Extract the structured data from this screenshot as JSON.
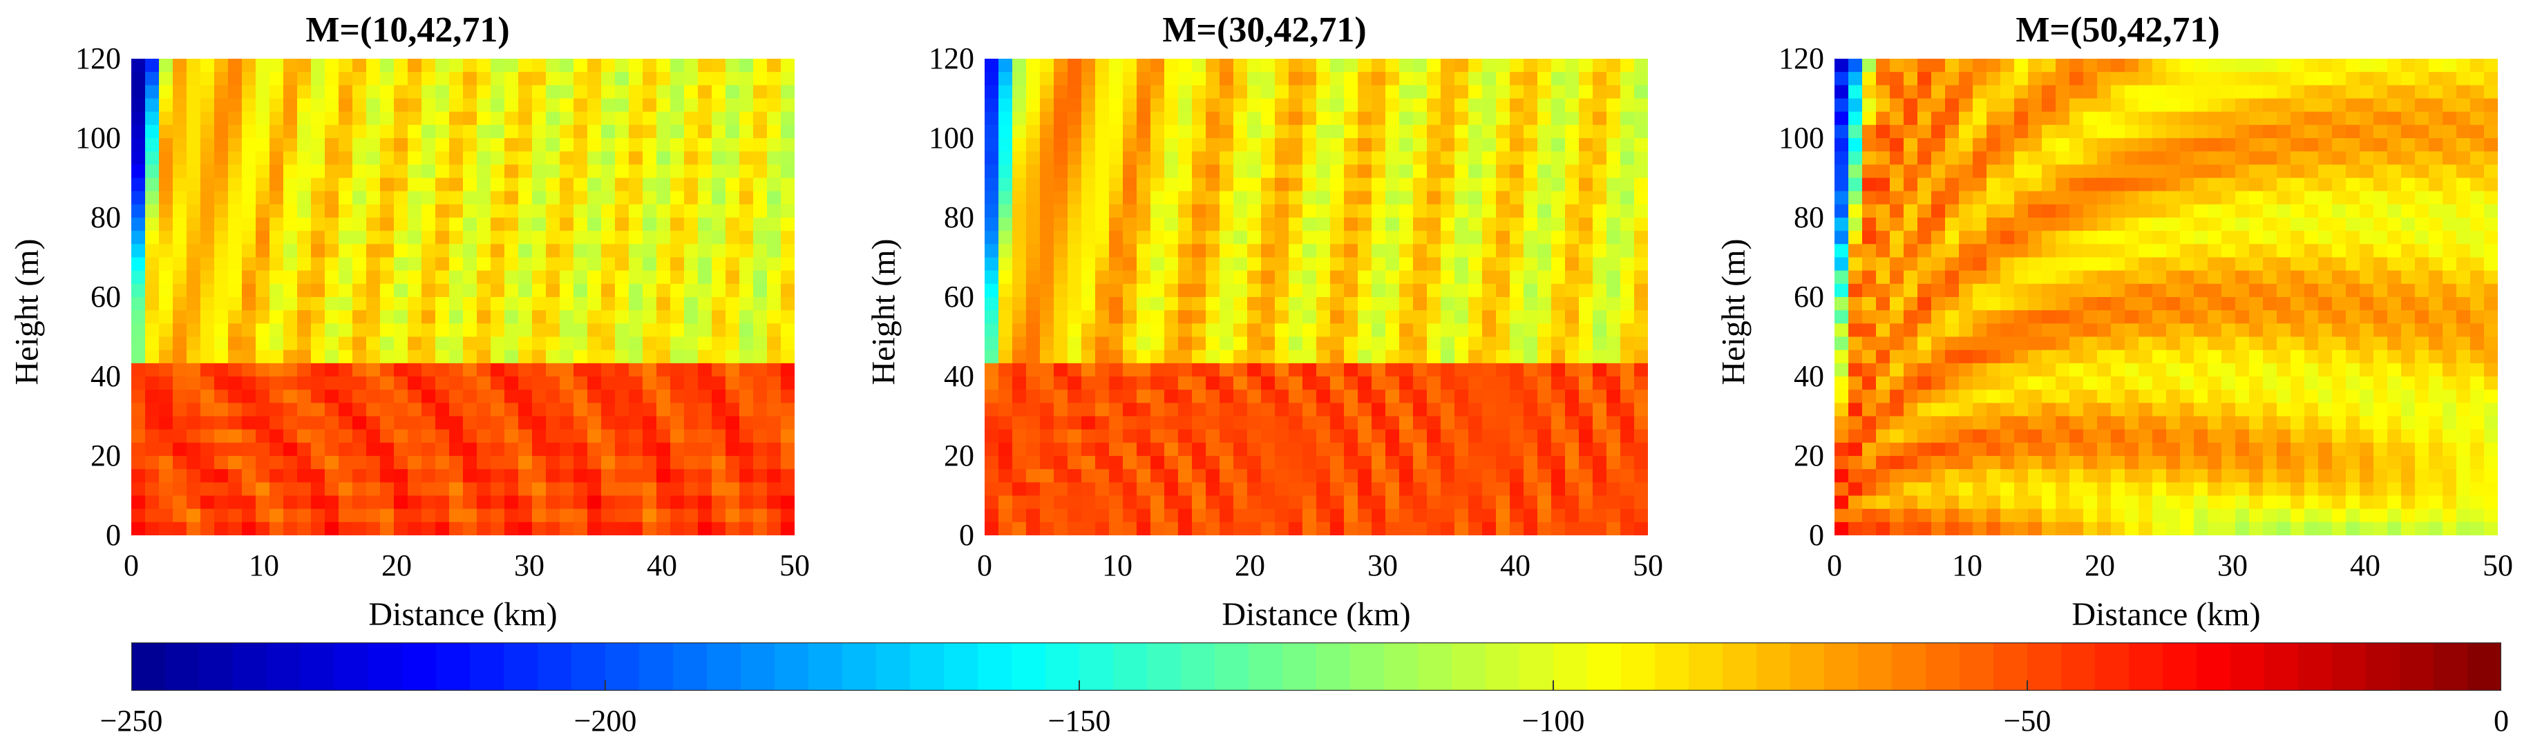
{
  "chart_data": [
    {
      "type": "heatmap",
      "title": "M=(10,42,71)",
      "xlabel": "Distance (km)",
      "ylabel": "Height (m)",
      "xlim": [
        0,
        50
      ],
      "ylim": [
        0,
        120
      ],
      "xticks": [
        "0",
        "10",
        "20",
        "30",
        "40",
        "50"
      ],
      "yticks": [
        "0",
        "20",
        "40",
        "60",
        "80",
        "100",
        "120"
      ],
      "duct_height_m": 42,
      "pattern": "surface duct: strong interference lobes below 42 m, weaker diffuse field above"
    },
    {
      "type": "heatmap",
      "title": "M=(30,42,71)",
      "xlabel": "Distance (km)",
      "ylabel": "Height (m)",
      "xlim": [
        0,
        50
      ],
      "ylim": [
        0,
        120
      ],
      "xticks": [
        "0",
        "10",
        "20",
        "30",
        "40",
        "50"
      ],
      "yticks": [
        "0",
        "20",
        "40",
        "60",
        "80",
        "100",
        "120"
      ],
      "duct_height_m": 42,
      "pattern": "surface duct: dense interference below 42 m, streaked field above"
    },
    {
      "type": "heatmap",
      "title": "M=(50,42,71)",
      "xlabel": "Distance (km)",
      "ylabel": "Height (m)",
      "xlim": [
        0,
        50
      ],
      "ylim": [
        0,
        120
      ],
      "xticks": [
        "0",
        "10",
        "20",
        "30",
        "40",
        "50"
      ],
      "yticks": [
        "0",
        "20",
        "40",
        "60",
        "80",
        "100",
        "120"
      ],
      "duct_height_m": 42,
      "pattern": "no trapping: smooth lobes fanning upward, weak field near surface at long range"
    }
  ],
  "colorbar": {
    "range": [
      -250,
      0
    ],
    "ticks": [
      "−250",
      "−200",
      "−150",
      "−100",
      "−50",
      "0"
    ],
    "tick_values": [
      -250,
      -200,
      -150,
      -100,
      -50,
      0
    ],
    "colormap": [
      "#00008f",
      "#0000ff",
      "#007fff",
      "#00ffff",
      "#7fff7f",
      "#ffff00",
      "#ff7f00",
      "#ff0000",
      "#7f0000"
    ]
  }
}
